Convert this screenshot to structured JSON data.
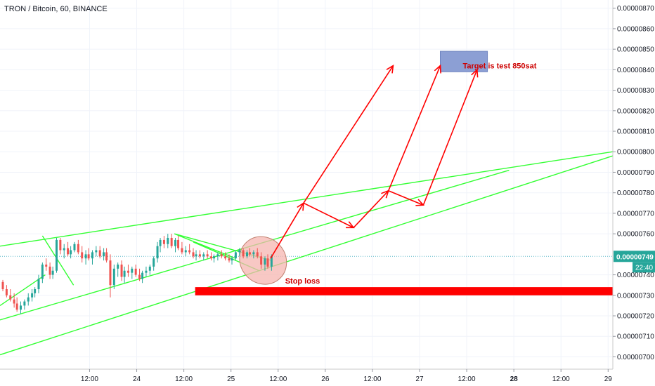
{
  "header": {
    "symbol_title": "TRON / Bitcoin, 60, BINANCE"
  },
  "colors": {
    "up": "#26a69a",
    "down": "#ef5350",
    "trendline": "#33ff33",
    "arrow": "#ff0000",
    "stoploss": "#ff0000",
    "target_box": "#8c9fd4",
    "target_text": "#cc0000",
    "ellipse_fill": "#f5b5b0",
    "ellipse_stroke": "#c08070",
    "price_line": "#5fb8c8",
    "grid": "#f0f3fa",
    "axis_text": "#131722",
    "price_tag": "#26a69a"
  },
  "annotations": {
    "target_label": "Target is test 850sat",
    "stoploss_label": "Stop loss"
  },
  "price_tag": {
    "price": "0.00000749",
    "countdown": "22:40"
  },
  "chart_data": {
    "type": "candlestick",
    "title": "TRON / Bitcoin, 60, BINANCE",
    "y_ticks": [
      "0.00000870",
      "0.00000860",
      "0.00000850",
      "0.00000840",
      "0.00000830",
      "0.00000820",
      "0.00000810",
      "0.00000800",
      "0.00000790",
      "0.00000780",
      "0.00000770",
      "0.00000760",
      "0.00000740",
      "0.00000730",
      "0.00000720",
      "0.00000710",
      "0.00000700"
    ],
    "ylim": [
      6.94e-06,
      8.74e-06
    ],
    "x_ticks": [
      {
        "label": "12:00",
        "x": 0.5,
        "bold": false
      },
      {
        "label": "24",
        "x": 1.0,
        "bold": false
      },
      {
        "label": "12:00",
        "x": 1.5,
        "bold": false
      },
      {
        "label": "25",
        "x": 2.0,
        "bold": false
      },
      {
        "label": "12:00",
        "x": 2.5,
        "bold": false
      },
      {
        "label": "26",
        "x": 3.0,
        "bold": false
      },
      {
        "label": "12:00",
        "x": 3.5,
        "bold": false
      },
      {
        "label": "27",
        "x": 4.0,
        "bold": false
      },
      {
        "label": "12:00",
        "x": 4.5,
        "bold": false
      },
      {
        "label": "28",
        "x": 5.0,
        "bold": true
      },
      {
        "label": "12:00",
        "x": 5.5,
        "bold": false
      },
      {
        "label": "29",
        "x": 6.0,
        "bold": false
      }
    ],
    "xlim": [
      -0.45,
      6.05
    ],
    "last_price": 7.49e-06,
    "candles": [
      {
        "x": -0.42,
        "o": 736.5,
        "h": 737.5,
        "l": 732,
        "c": 733
      },
      {
        "x": -0.38,
        "o": 733,
        "h": 735,
        "l": 729,
        "c": 730
      },
      {
        "x": -0.34,
        "o": 730,
        "h": 733,
        "l": 727,
        "c": 728
      },
      {
        "x": -0.3,
        "o": 728,
        "h": 731,
        "l": 724,
        "c": 726
      },
      {
        "x": -0.27,
        "o": 726,
        "h": 729,
        "l": 722,
        "c": 723
      },
      {
        "x": -0.23,
        "o": 723,
        "h": 727,
        "l": 721,
        "c": 725
      },
      {
        "x": -0.19,
        "o": 725,
        "h": 728,
        "l": 723,
        "c": 727
      },
      {
        "x": -0.15,
        "o": 727,
        "h": 731,
        "l": 725,
        "c": 729
      },
      {
        "x": -0.11,
        "o": 729,
        "h": 733,
        "l": 727,
        "c": 731
      },
      {
        "x": -0.08,
        "o": 731,
        "h": 734,
        "l": 729,
        "c": 733
      },
      {
        "x": -0.04,
        "o": 733,
        "h": 740,
        "l": 731,
        "c": 738
      },
      {
        "x": 0.0,
        "o": 738,
        "h": 746,
        "l": 736,
        "c": 745
      },
      {
        "x": 0.04,
        "o": 745,
        "h": 748,
        "l": 742,
        "c": 744
      },
      {
        "x": 0.08,
        "o": 744,
        "h": 746,
        "l": 738,
        "c": 740
      },
      {
        "x": 0.11,
        "o": 740,
        "h": 744,
        "l": 738,
        "c": 742
      },
      {
        "x": 0.15,
        "o": 742,
        "h": 758,
        "l": 741,
        "c": 757
      },
      {
        "x": 0.19,
        "o": 757,
        "h": 758,
        "l": 750,
        "c": 752
      },
      {
        "x": 0.23,
        "o": 752,
        "h": 755,
        "l": 748,
        "c": 753
      },
      {
        "x": 0.27,
        "o": 753,
        "h": 756,
        "l": 749,
        "c": 750
      },
      {
        "x": 0.3,
        "o": 750,
        "h": 754,
        "l": 748,
        "c": 752
      },
      {
        "x": 0.34,
        "o": 752,
        "h": 756,
        "l": 751,
        "c": 755
      },
      {
        "x": 0.38,
        "o": 755,
        "h": 757,
        "l": 750,
        "c": 751
      },
      {
        "x": 0.42,
        "o": 751,
        "h": 754,
        "l": 746,
        "c": 748
      },
      {
        "x": 0.46,
        "o": 748,
        "h": 752,
        "l": 745,
        "c": 750
      },
      {
        "x": 0.49,
        "o": 750,
        "h": 753,
        "l": 747,
        "c": 748
      },
      {
        "x": 0.53,
        "o": 748,
        "h": 752,
        "l": 745,
        "c": 751
      },
      {
        "x": 0.57,
        "o": 751,
        "h": 754,
        "l": 749,
        "c": 752
      },
      {
        "x": 0.61,
        "o": 752,
        "h": 754,
        "l": 748,
        "c": 749
      },
      {
        "x": 0.65,
        "o": 749,
        "h": 753,
        "l": 747,
        "c": 751
      },
      {
        "x": 0.68,
        "o": 751,
        "h": 753,
        "l": 746,
        "c": 747
      },
      {
        "x": 0.72,
        "o": 747,
        "h": 750,
        "l": 729,
        "c": 735
      },
      {
        "x": 0.76,
        "o": 735,
        "h": 745,
        "l": 733,
        "c": 743
      },
      {
        "x": 0.8,
        "o": 743,
        "h": 746,
        "l": 739,
        "c": 745
      },
      {
        "x": 0.84,
        "o": 745,
        "h": 747,
        "l": 737,
        "c": 739
      },
      {
        "x": 0.87,
        "o": 739,
        "h": 744,
        "l": 736,
        "c": 742
      },
      {
        "x": 0.91,
        "o": 742,
        "h": 745,
        "l": 739,
        "c": 741
      },
      {
        "x": 0.95,
        "o": 741,
        "h": 744,
        "l": 738,
        "c": 743
      },
      {
        "x": 0.99,
        "o": 743,
        "h": 745,
        "l": 739,
        "c": 740
      },
      {
        "x": 1.03,
        "o": 740,
        "h": 743,
        "l": 737,
        "c": 738
      },
      {
        "x": 1.06,
        "o": 738,
        "h": 742,
        "l": 736,
        "c": 741
      },
      {
        "x": 1.1,
        "o": 741,
        "h": 744,
        "l": 739,
        "c": 742
      },
      {
        "x": 1.14,
        "o": 742,
        "h": 745,
        "l": 740,
        "c": 744
      },
      {
        "x": 1.18,
        "o": 744,
        "h": 749,
        "l": 742,
        "c": 748
      },
      {
        "x": 1.22,
        "o": 748,
        "h": 756,
        "l": 746,
        "c": 754
      },
      {
        "x": 1.25,
        "o": 754,
        "h": 758,
        "l": 751,
        "c": 757
      },
      {
        "x": 1.29,
        "o": 757,
        "h": 759,
        "l": 753,
        "c": 755
      },
      {
        "x": 1.33,
        "o": 755,
        "h": 760,
        "l": 753,
        "c": 758
      },
      {
        "x": 1.37,
        "o": 758,
        "h": 760,
        "l": 753,
        "c": 754
      },
      {
        "x": 1.41,
        "o": 754,
        "h": 758,
        "l": 751,
        "c": 757
      },
      {
        "x": 1.44,
        "o": 757,
        "h": 759,
        "l": 752,
        "c": 753
      },
      {
        "x": 1.48,
        "o": 753,
        "h": 756,
        "l": 750,
        "c": 751
      },
      {
        "x": 1.52,
        "o": 751,
        "h": 754,
        "l": 749,
        "c": 752
      },
      {
        "x": 1.56,
        "o": 752,
        "h": 755,
        "l": 750,
        "c": 751
      },
      {
        "x": 1.6,
        "o": 751,
        "h": 753,
        "l": 748,
        "c": 749
      },
      {
        "x": 1.63,
        "o": 749,
        "h": 752,
        "l": 747,
        "c": 750
      },
      {
        "x": 1.67,
        "o": 750,
        "h": 752,
        "l": 748,
        "c": 749
      },
      {
        "x": 1.71,
        "o": 749,
        "h": 751,
        "l": 747,
        "c": 750
      },
      {
        "x": 1.75,
        "o": 750,
        "h": 752,
        "l": 748,
        "c": 749
      },
      {
        "x": 1.79,
        "o": 749,
        "h": 751,
        "l": 747,
        "c": 748
      },
      {
        "x": 1.82,
        "o": 748,
        "h": 750,
        "l": 746,
        "c": 749
      },
      {
        "x": 1.86,
        "o": 749,
        "h": 751,
        "l": 747,
        "c": 750
      },
      {
        "x": 1.9,
        "o": 750,
        "h": 752,
        "l": 748,
        "c": 749
      },
      {
        "x": 1.94,
        "o": 749,
        "h": 751,
        "l": 747,
        "c": 748
      },
      {
        "x": 1.98,
        "o": 748,
        "h": 750,
        "l": 746,
        "c": 747
      },
      {
        "x": 2.01,
        "o": 747,
        "h": 749,
        "l": 745,
        "c": 748
      },
      {
        "x": 2.05,
        "o": 748,
        "h": 752,
        "l": 747,
        "c": 751
      },
      {
        "x": 2.09,
        "o": 751,
        "h": 753,
        "l": 749,
        "c": 752
      },
      {
        "x": 2.13,
        "o": 752,
        "h": 753,
        "l": 748,
        "c": 749
      },
      {
        "x": 2.17,
        "o": 749,
        "h": 752,
        "l": 748,
        "c": 751
      },
      {
        "x": 2.2,
        "o": 751,
        "h": 753,
        "l": 749,
        "c": 750
      },
      {
        "x": 2.24,
        "o": 750,
        "h": 752,
        "l": 748,
        "c": 751
      },
      {
        "x": 2.28,
        "o": 751,
        "h": 753,
        "l": 748,
        "c": 749
      },
      {
        "x": 2.32,
        "o": 749,
        "h": 751,
        "l": 743,
        "c": 745
      },
      {
        "x": 2.36,
        "o": 745,
        "h": 749,
        "l": 742,
        "c": 748
      },
      {
        "x": 2.39,
        "o": 748,
        "h": 750,
        "l": 743,
        "c": 744
      },
      {
        "x": 2.43,
        "o": 744,
        "h": 750,
        "l": 742,
        "c": 749
      }
    ],
    "trendlines": [
      {
        "x1": -0.45,
        "y1": 725,
        "x2": 0.03,
        "y2": 740
      },
      {
        "x1": -0.45,
        "y1": 754,
        "x2": 6.05,
        "y2": 800
      },
      {
        "x1": -0.45,
        "y1": 718,
        "x2": 4.95,
        "y2": 791
      },
      {
        "x1": -0.45,
        "y1": 701,
        "x2": 6.05,
        "y2": 798
      },
      {
        "x1": 0.0,
        "y1": 759,
        "x2": 0.33,
        "y2": 735
      },
      {
        "x1": 1.4,
        "y1": 760,
        "x2": 2.05,
        "y2": 748
      },
      {
        "x1": 1.4,
        "y1": 760,
        "x2": 2.43,
        "y2": 747
      },
      {
        "x1": 1.6,
        "y1": 756,
        "x2": 2.3,
        "y2": 742
      }
    ],
    "arrows": [
      {
        "x1": 2.42,
        "y1": 748,
        "x2": 2.77,
        "y2": 775
      },
      {
        "x1": 2.77,
        "y1": 775,
        "x2": 3.72,
        "y2": 842
      },
      {
        "x1": 2.77,
        "y1": 775,
        "x2": 3.3,
        "y2": 763
      },
      {
        "x1": 3.3,
        "y1": 763,
        "x2": 3.67,
        "y2": 781
      },
      {
        "x1": 3.67,
        "y1": 781,
        "x2": 4.22,
        "y2": 842
      },
      {
        "x1": 3.67,
        "y1": 781,
        "x2": 4.04,
        "y2": 774
      },
      {
        "x1": 4.04,
        "y1": 774,
        "x2": 4.61,
        "y2": 840
      }
    ],
    "target_box": {
      "x1": 4.22,
      "x2": 4.72,
      "y1": 839,
      "y2": 849
    },
    "stoploss_box": {
      "x1": 1.62,
      "x2": 6.05,
      "y1": 730,
      "y2": 734
    },
    "ellipse": {
      "cx": 2.34,
      "cy": 747,
      "rx_days": 0.24,
      "ry_price": 12,
      "rotation": -40
    }
  }
}
